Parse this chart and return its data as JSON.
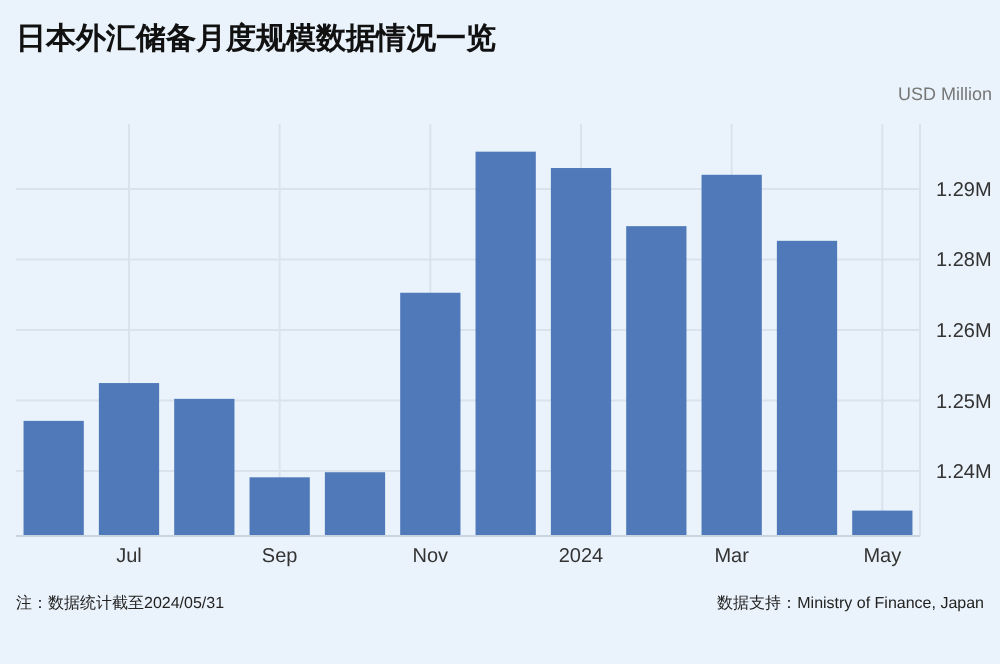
{
  "chart_data": {
    "type": "bar",
    "title": "日本外汇储备月度规模数据情况一览",
    "ylabel": "USD Million",
    "categories": [
      null,
      "Jul",
      null,
      "Sep",
      null,
      "Nov",
      null,
      "2024",
      null,
      "Mar",
      null,
      "May"
    ],
    "values": [
      1.2464,
      1.2531,
      1.2503,
      1.2364,
      1.2373,
      1.2691,
      1.2941,
      1.2912,
      1.2809,
      1.29,
      1.2783,
      1.2305
    ],
    "color": "#4f79b8",
    "ylim": [
      1.226,
      1.299
    ],
    "yticks": [
      {
        "value": 1.2375,
        "label": "1.24M"
      },
      {
        "value": 1.25,
        "label": "1.25M"
      },
      {
        "value": 1.2625,
        "label": "1.26M"
      },
      {
        "value": 1.275,
        "label": "1.28M"
      },
      {
        "value": 1.2875,
        "label": "1.29M"
      }
    ],
    "grid": true,
    "annotations": [
      "注：数据统计截至2024/05/31",
      "数据支持：Ministry of Finance, Japan"
    ]
  }
}
